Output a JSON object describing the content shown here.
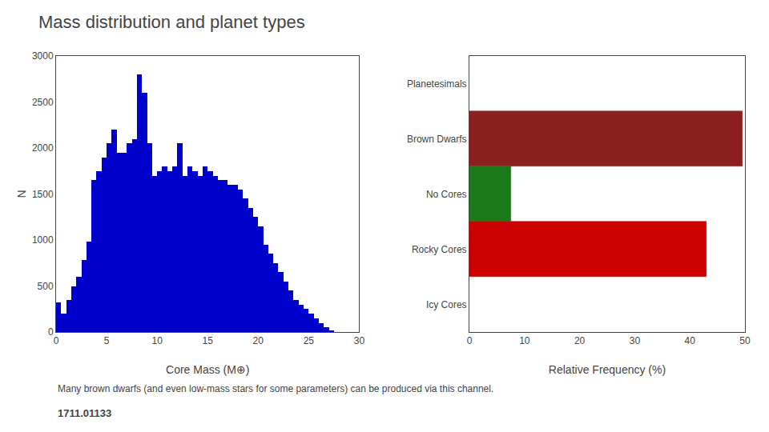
{
  "title": "Mass distribution and planet types",
  "subtitle": "Many brown dwarfs (and even low-mass stars for some parameters) can be produced via this channel.",
  "annotations": [
    "1711.01133"
  ],
  "chart_data": [
    {
      "type": "histogram",
      "bins": [
        0,
        0.5,
        1,
        1.5,
        2,
        2.5,
        3,
        3.5,
        4,
        4.5,
        5,
        5.5,
        6,
        6.5,
        7,
        7.5,
        8,
        8.5,
        9,
        9.5,
        10,
        10.5,
        11,
        11.5,
        12,
        12.5,
        13,
        13.5,
        14,
        14.5,
        15,
        15.5,
        16,
        16.5,
        17,
        17.5,
        18,
        18.5,
        19,
        19.5,
        20,
        20.5,
        21,
        21.5,
        22,
        22.5,
        23,
        23.5,
        24,
        24.5,
        25,
        25.5,
        26,
        26.5,
        27,
        27.5
      ],
      "values": [
        320,
        200,
        350,
        500,
        600,
        780,
        980,
        1650,
        1750,
        1900,
        2050,
        2200,
        1950,
        1950,
        2050,
        2100,
        2800,
        2600,
        2050,
        1700,
        1750,
        1800,
        1750,
        1800,
        2050,
        1700,
        1800,
        1750,
        1700,
        1800,
        1750,
        1700,
        1650,
        1650,
        1600,
        1600,
        1550,
        1450,
        1350,
        1250,
        1150,
        950,
        850,
        750,
        650,
        550,
        450,
        350,
        300,
        250,
        200,
        150,
        100,
        50,
        20
      ],
      "color": "#0000cc",
      "xlabel": "Core Mass (M⊕)",
      "ylabel": "N",
      "xlim": [
        0,
        30
      ],
      "xticks": [
        0,
        5,
        10,
        15,
        20,
        25,
        30
      ],
      "ylim": [
        0,
        3000
      ],
      "yticks": [
        0,
        500,
        1000,
        1500,
        2000,
        2500,
        3000
      ],
      "grid": false
    },
    {
      "type": "bar",
      "orientation": "horizontal",
      "categories": [
        "Planetesimals",
        "Brown Dwarfs",
        "No Cores",
        "Rocky Cores",
        "Icy Cores"
      ],
      "values": [
        0.0,
        49.5,
        7.5,
        43.0,
        0.0
      ],
      "colors": [
        "#ffffff",
        "#8b2020",
        "#1a7a1a",
        "#cc0000",
        "#ffffff"
      ],
      "xlabel": "Relative Frequency (%)",
      "xlim": [
        0,
        50
      ],
      "xticks": [
        0,
        10,
        20,
        30,
        40,
        50
      ],
      "grid": false
    }
  ]
}
